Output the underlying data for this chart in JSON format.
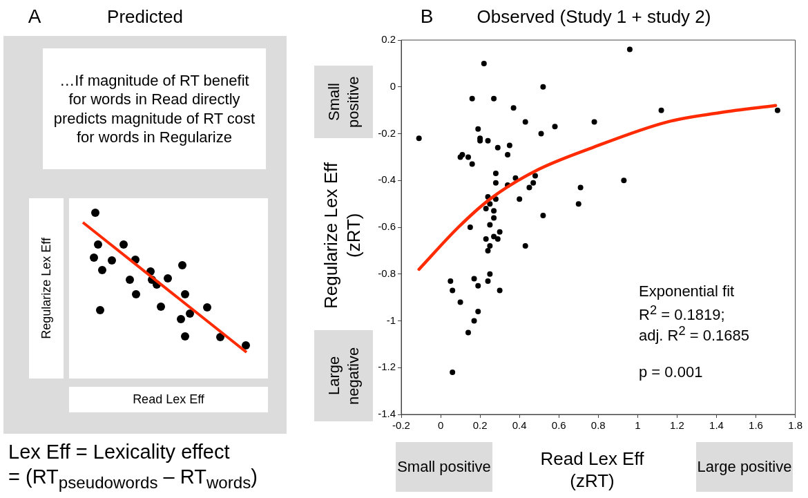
{
  "chart_data": [
    {
      "type": "other",
      "title": "Predicted",
      "xlabel": "Read Lex Eff",
      "ylabel": "Regularize Lex Eff",
      "annotations": [
        "A",
        "…If magnitude of RT benefit for words in Read directly predicts magnitude of RT cost for words in Regularize",
        "Lex Eff = Lexicality effect",
        "= (RT$_{pseudowords}$ – RT$_{words}$)"
      ]
    },
    {
      "type": "scatter",
      "title": "Observed (Study 1 + study 2)",
      "xlabel": "Read Lex Eff (zRT)",
      "ylabel": "Regularize Lex Eff (zRT)",
      "marker": "circle",
      "xlim": [
        -0.2,
        1.8
      ],
      "xticks": [
        -0.2,
        0,
        0.2,
        0.4,
        0.6,
        0.8,
        1,
        1.2,
        1.4,
        1.6,
        1.8
      ],
      "ylim": [
        -1.4,
        0.2
      ],
      "yticks": [
        -1.4,
        -1.2,
        -1,
        -0.8,
        -0.6,
        -0.4,
        -0.2,
        0,
        0.2
      ],
      "annotations": [
        "B",
        "Small positive",
        "Large negative",
        "Small positive",
        "Large positive",
        "Exponential fit",
        "R$^{2}$ = 0.1819;",
        "adj. R$^{2}$ = 0.1685",
        "p = 0.001"
      ],
      "series": [
        {
          "color": "#000000",
          "x": [
            -0.11,
            0.22,
            0.16,
            0.27,
            0.52,
            0.37,
            0.43,
            0.78,
            0.58,
            0.19,
            0.51,
            0.2,
            0.2,
            0.24,
            0.29,
            0.35,
            0.11,
            0.1,
            0.14,
            0.34,
            0.16,
            0.28,
            0.38,
            0.28,
            0.34,
            0.48,
            0.47,
            0.45,
            0.71,
            0.7,
            0.24,
            0.28,
            0.4,
            0.25,
            0.23,
            0.27,
            0.52,
            0.27,
            0.25,
            0.15,
            0.3,
            0.27,
            0.23,
            0.29,
            0.25,
            0.24,
            0.43,
            0.25,
            0.17,
            0.05,
            0.24,
            0.19,
            0.06,
            0.3,
            0.1,
            0.19,
            0.17,
            0.14,
            0.06,
            0.96,
            1.12,
            1.71,
            0.93
          ],
          "values": [
            -0.22,
            0.1,
            -0.05,
            -0.05,
            0,
            -0.09,
            -0.15,
            -0.15,
            -0.17,
            -0.18,
            -0.2,
            -0.22,
            -0.23,
            -0.23,
            -0.26,
            -0.25,
            -0.29,
            -0.3,
            -0.3,
            -0.29,
            -0.33,
            -0.37,
            -0.39,
            -0.41,
            -0.42,
            -0.38,
            -0.41,
            -0.43,
            -0.43,
            -0.5,
            -0.47,
            -0.48,
            -0.48,
            -0.5,
            -0.52,
            -0.53,
            -0.55,
            -0.56,
            -0.59,
            -0.6,
            -0.62,
            -0.64,
            -0.65,
            -0.65,
            -0.68,
            -0.7,
            -0.68,
            -0.8,
            -0.82,
            -0.83,
            -0.83,
            -0.85,
            -0.87,
            -0.87,
            -0.92,
            -0.96,
            -1,
            -1.05,
            -1.22,
            0.16,
            -0.1,
            -0.1,
            -0.4
          ]
        },
        {
          "type": "line",
          "marker": "none",
          "color": "#ff2a00",
          "x": [
            -0.11,
            0.09,
            0.25,
            0.48,
            0.77,
            1.15,
            1.42,
            1.7
          ],
          "values": [
            -0.78,
            -0.6,
            -0.48,
            -0.36,
            -0.26,
            -0.15,
            -0.11,
            -0.08
          ]
        }
      ]
    }
  ]
}
